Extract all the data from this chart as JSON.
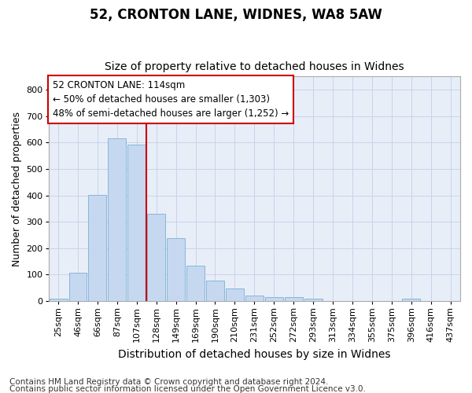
{
  "title1": "52, CRONTON LANE, WIDNES, WA8 5AW",
  "title2": "Size of property relative to detached houses in Widnes",
  "xlabel": "Distribution of detached houses by size in Widnes",
  "ylabel": "Number of detached properties",
  "categories": [
    "25sqm",
    "46sqm",
    "66sqm",
    "87sqm",
    "107sqm",
    "128sqm",
    "149sqm",
    "169sqm",
    "190sqm",
    "210sqm",
    "231sqm",
    "252sqm",
    "272sqm",
    "293sqm",
    "313sqm",
    "334sqm",
    "355sqm",
    "375sqm",
    "396sqm",
    "416sqm",
    "437sqm"
  ],
  "values": [
    8,
    107,
    403,
    617,
    592,
    330,
    238,
    135,
    78,
    49,
    22,
    15,
    15,
    9,
    0,
    0,
    0,
    0,
    9,
    0,
    0
  ],
  "bar_color": "#c5d8f0",
  "bar_edgecolor": "#7bafd4",
  "vline_x": 4.5,
  "vline_color": "#cc0000",
  "annotation_text": "52 CRONTON LANE: 114sqm\n← 50% of detached houses are smaller (1,303)\n48% of semi-detached houses are larger (1,252) →",
  "annotation_box_facecolor": "#ffffff",
  "annotation_box_edgecolor": "#cc0000",
  "ylim": [
    0,
    850
  ],
  "yticks": [
    0,
    100,
    200,
    300,
    400,
    500,
    600,
    700,
    800
  ],
  "grid_color": "#c8d4e8",
  "bg_color": "#e8eef8",
  "fig_facecolor": "#ffffff",
  "footer1": "Contains HM Land Registry data © Crown copyright and database right 2024.",
  "footer2": "Contains public sector information licensed under the Open Government Licence v3.0.",
  "title1_fontsize": 12,
  "title2_fontsize": 10,
  "xlabel_fontsize": 10,
  "ylabel_fontsize": 9,
  "tick_fontsize": 8,
  "annotation_fontsize": 8.5,
  "footer_fontsize": 7.5
}
